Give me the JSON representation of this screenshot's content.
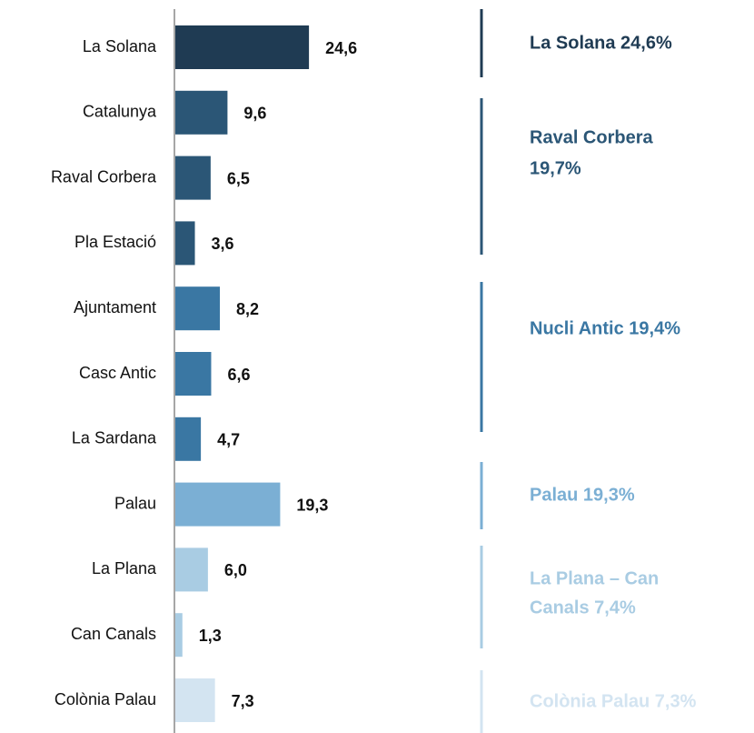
{
  "chart_data": {
    "type": "bar",
    "orientation": "horizontal",
    "categories": [
      "La Solana",
      "Catalunya",
      "Raval Corbera",
      "Pla Estació",
      "Ajuntament",
      "Casc Antic",
      "La Sardana",
      "Palau",
      "La Plana",
      "Can Canals",
      "Colònia Palau"
    ],
    "values": [
      24.6,
      9.6,
      6.5,
      3.6,
      8.2,
      6.6,
      4.7,
      19.3,
      6.0,
      1.3,
      7.3
    ],
    "value_labels": [
      "24,6",
      "9,6",
      "6,5",
      "3,6",
      "8,2",
      "6,6",
      "4,7",
      "19,3",
      "6,0",
      "1,3",
      "7,3"
    ],
    "colors": [
      "#1f3b53",
      "#2b5676",
      "#2b5676",
      "#2b5676",
      "#3a77a3",
      "#3a77a3",
      "#3a77a3",
      "#7bafd4",
      "#a9cce3",
      "#a9cce3",
      "#d3e4f1"
    ],
    "xlim": [
      0,
      50
    ],
    "groups": [
      {
        "lines": [
          "La Solana 24,6%"
        ],
        "color": "#1f3b53"
      },
      {
        "lines": [
          "Raval Corbera",
          "19,7%"
        ],
        "color": "#2b5676"
      },
      {
        "lines": [
          "Nucli Antic 19,4%"
        ],
        "color": "#3a77a3"
      },
      {
        "lines": [
          "Palau 19,3%"
        ],
        "color": "#7bafd4"
      },
      {
        "lines": [
          "La Plana – Can",
          "Canals 7,4%"
        ],
        "color": "#a9cce3"
      },
      {
        "lines": [
          "Colònia Palau 7,3%"
        ],
        "color": "#d3e4f1"
      }
    ]
  }
}
